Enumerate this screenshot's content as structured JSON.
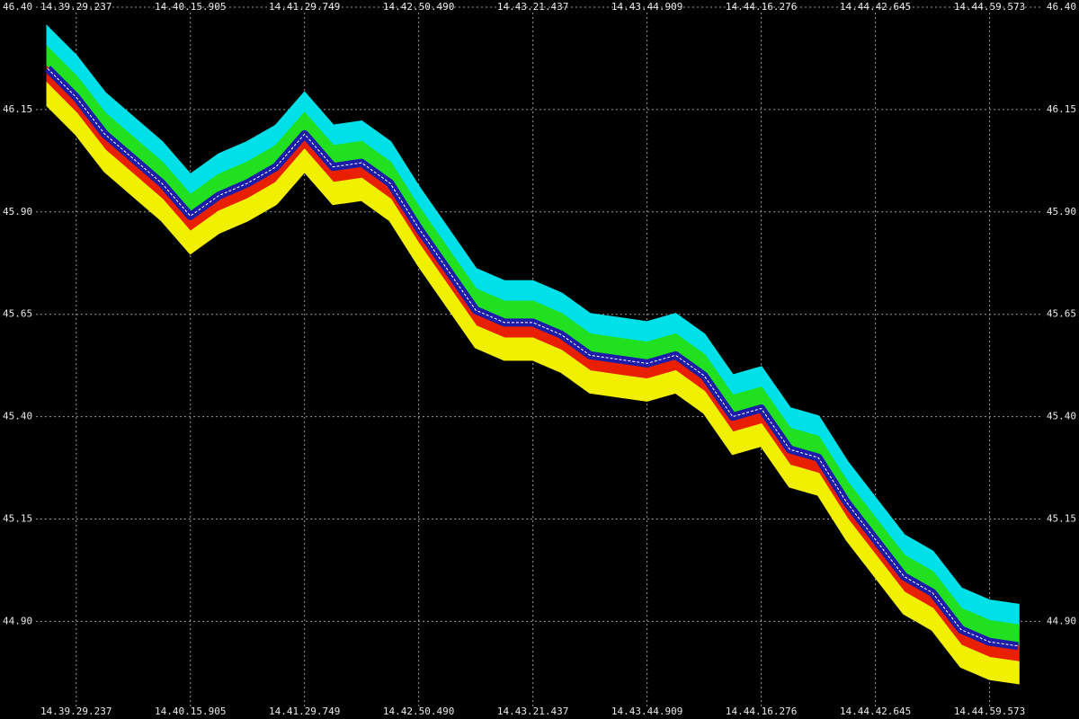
{
  "chart_data": {
    "type": "band",
    "x": [
      0,
      1,
      2,
      3,
      4,
      5,
      6,
      7,
      8,
      9,
      10,
      11,
      12,
      13,
      14,
      15,
      16,
      17,
      18,
      19,
      20,
      21,
      22,
      23,
      24,
      25,
      26,
      27,
      28,
      29,
      30,
      31,
      32,
      33,
      34
    ],
    "xlim": [
      0,
      34.4
    ],
    "xticks": [
      {
        "value": 1,
        "label": "14.39.29.237"
      },
      {
        "value": 5,
        "label": "14.40.15.905"
      },
      {
        "value": 9,
        "label": "14.41.29.749"
      },
      {
        "value": 13,
        "label": "14.42.50.490"
      },
      {
        "value": 17,
        "label": "14.43.21.437"
      },
      {
        "value": 21,
        "label": "14.43.44.909"
      },
      {
        "value": 25,
        "label": "14.44.16.276"
      },
      {
        "value": 29,
        "label": "14.44.42.645"
      },
      {
        "value": 33,
        "label": "14.44.59.573"
      }
    ],
    "ylim": [
      44.71,
      46.4
    ],
    "yticks": [
      {
        "value": 46.4,
        "label": "46.40"
      },
      {
        "value": 46.15,
        "label": "46.15"
      },
      {
        "value": 45.9,
        "label": "45.90"
      },
      {
        "value": 45.65,
        "label": "45.65"
      },
      {
        "value": 45.4,
        "label": "45.40"
      },
      {
        "value": 45.15,
        "label": "45.15"
      },
      {
        "value": 44.9,
        "label": "44.90"
      }
    ],
    "grid": true,
    "series": [
      {
        "color": "#00e0e8",
        "values": [
          46.35,
          46.28,
          46.19,
          46.13,
          46.07,
          45.99,
          46.04,
          46.07,
          46.11,
          46.19,
          46.11,
          46.12,
          46.07,
          45.96,
          45.86,
          45.76,
          45.73,
          45.73,
          45.7,
          45.65,
          45.64,
          45.63,
          45.65,
          45.6,
          45.5,
          45.52,
          45.42,
          45.4,
          45.29,
          45.2,
          45.11,
          45.07,
          44.98,
          44.95,
          44.94
        ]
      },
      {
        "color": "#20e020",
        "values": [
          46.3,
          46.23,
          46.14,
          46.08,
          46.02,
          45.94,
          45.99,
          46.02,
          46.06,
          46.14,
          46.06,
          46.07,
          46.02,
          45.91,
          45.81,
          45.71,
          45.68,
          45.68,
          45.65,
          45.6,
          45.59,
          45.58,
          45.6,
          45.55,
          45.45,
          45.47,
          45.37,
          45.35,
          45.24,
          45.15,
          45.06,
          45.02,
          44.93,
          44.9,
          44.89
        ]
      },
      {
        "color": "#1c1ca8",
        "values": [
          46.25,
          46.18,
          46.09,
          46.03,
          45.97,
          45.89,
          45.94,
          45.97,
          46.01,
          46.09,
          46.01,
          46.02,
          45.97,
          45.86,
          45.76,
          45.66,
          45.63,
          45.63,
          45.6,
          45.55,
          45.54,
          45.53,
          45.55,
          45.5,
          45.4,
          45.42,
          45.32,
          45.3,
          45.19,
          45.1,
          45.01,
          44.97,
          44.88,
          44.85,
          44.84
        ]
      },
      {
        "color": "#e82000",
        "values": [
          46.21,
          46.14,
          46.05,
          45.99,
          45.93,
          45.85,
          45.9,
          45.93,
          45.97,
          46.05,
          45.97,
          45.98,
          45.93,
          45.82,
          45.72,
          45.62,
          45.59,
          45.59,
          45.56,
          45.51,
          45.5,
          45.49,
          45.51,
          45.46,
          45.36,
          45.38,
          45.28,
          45.26,
          45.15,
          45.06,
          44.97,
          44.93,
          44.84,
          44.81,
          44.8
        ]
      },
      {
        "color": "#f0f000",
        "values": [
          46.16,
          46.09,
          46.0,
          45.94,
          45.88,
          45.8,
          45.85,
          45.88,
          45.92,
          46.0,
          45.92,
          45.93,
          45.88,
          45.77,
          45.67,
          45.57,
          45.54,
          45.54,
          45.51,
          45.46,
          45.45,
          45.44,
          45.46,
          45.41,
          45.31,
          45.33,
          45.23,
          45.21,
          45.1,
          45.01,
          44.92,
          44.88,
          44.79,
          44.76,
          44.75
        ]
      }
    ]
  }
}
